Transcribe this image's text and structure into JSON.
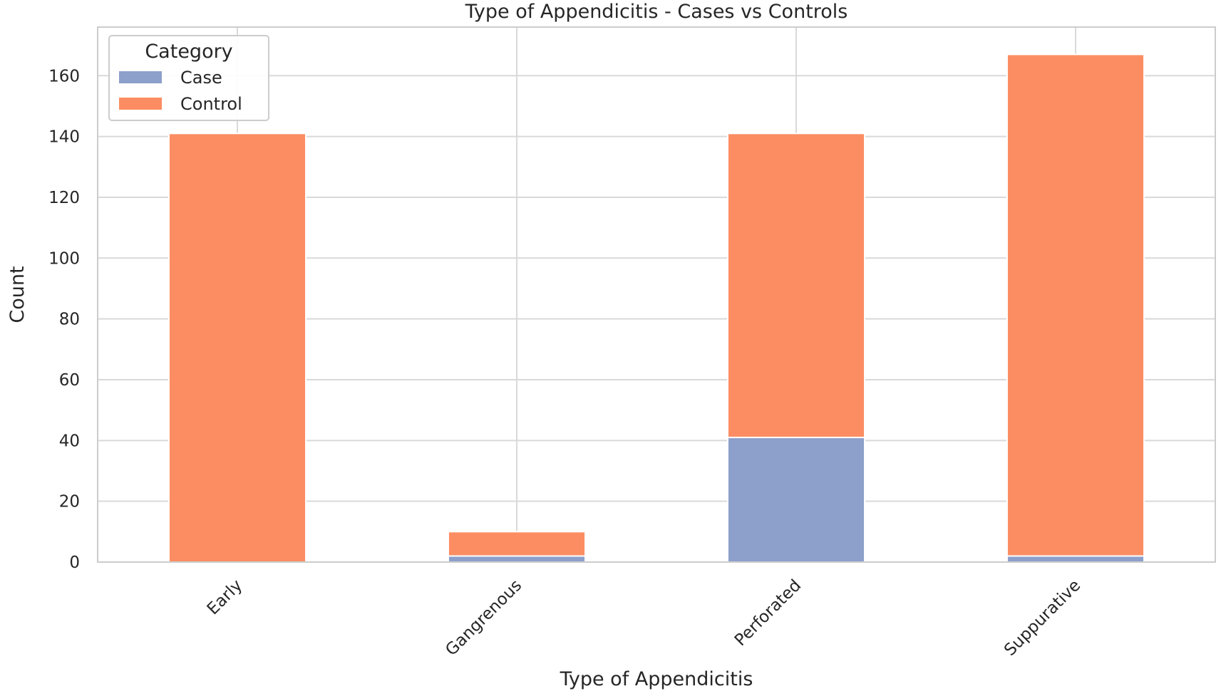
{
  "chart_data": {
    "type": "bar",
    "stacked": true,
    "title": "Type of Appendicitis - Cases vs Controls",
    "xlabel": "Type of Appendicitis",
    "ylabel": "Count",
    "categories": [
      "Early",
      "Gangrenous",
      "Perforated",
      "Suppurative"
    ],
    "series": [
      {
        "name": "Case",
        "values": [
          0,
          2,
          41,
          2
        ],
        "color": "#8da0cb"
      },
      {
        "name": "Control",
        "values": [
          141,
          8,
          100,
          165
        ],
        "color": "#fc8d62"
      }
    ],
    "ylim": [
      0,
      176
    ],
    "yticks": [
      0,
      20,
      40,
      60,
      80,
      100,
      120,
      140,
      160
    ],
    "grid": true,
    "x_tick_rotation": -45,
    "legend": {
      "title": "Category",
      "position": "top-left"
    }
  }
}
